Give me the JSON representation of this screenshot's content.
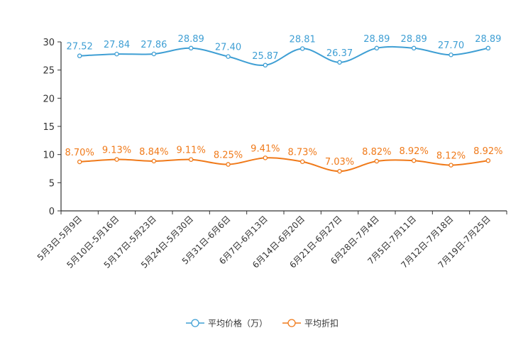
{
  "chart_data": {
    "type": "line",
    "categories": [
      "5月3日-5月9日",
      "5月10日-5月16日",
      "5月17日-5月23日",
      "5月24日-5月30日",
      "5月31日-6月6日",
      "6月7日-6月13日",
      "6月14日-6月20日",
      "6月21日-6月27日",
      "6月28日-7月4日",
      "7月5日-7月11日",
      "7月12日-7月18日",
      "7月19日-7月25日"
    ],
    "series": [
      {
        "name": "平均价格（万）",
        "color": "#3f9fd4",
        "values": [
          27.52,
          27.84,
          27.86,
          28.89,
          27.4,
          25.87,
          28.81,
          26.37,
          28.89,
          28.89,
          27.7,
          28.89
        ],
        "labels": [
          "27.52",
          "27.84",
          "27.86",
          "28.89",
          "27.40",
          "25.87",
          "28.81",
          "26.37",
          "28.89",
          "28.89",
          "27.70",
          "28.89"
        ]
      },
      {
        "name": "平均折扣",
        "color": "#f07a1a",
        "values": [
          8.7,
          9.13,
          8.84,
          9.11,
          8.25,
          9.41,
          8.73,
          7.03,
          8.82,
          8.92,
          8.12,
          8.92
        ],
        "labels": [
          "8.70%",
          "9.13%",
          "8.84%",
          "9.11%",
          "8.25%",
          "9.41%",
          "8.73%",
          "7.03%",
          "8.82%",
          "8.92%",
          "8.12%",
          "8.92%"
        ]
      }
    ],
    "yticks": [
      "0",
      "5",
      "10",
      "15",
      "20",
      "25",
      "30"
    ],
    "ylim": [
      0,
      30
    ],
    "grid": false,
    "legend": "bottom-center"
  }
}
